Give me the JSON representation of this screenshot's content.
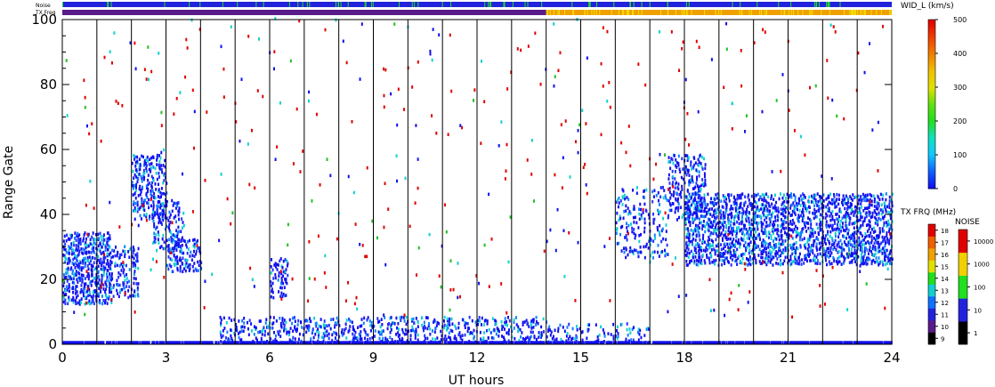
{
  "header": {
    "noise_label": "Noise",
    "txfreq_label": "TX Freq"
  },
  "chart_data": {
    "type": "heatmap",
    "xlabel": "UT hours",
    "ylabel": "Range Gate",
    "xlim": [
      0,
      24
    ],
    "ylim": [
      0,
      100
    ],
    "xticks": [
      "0",
      "3",
      "6",
      "9",
      "12",
      "15",
      "18",
      "21",
      "24"
    ],
    "yticks": [
      "0",
      "20",
      "40",
      "60",
      "80",
      "100"
    ],
    "hour_divider_lines": [
      1,
      2,
      3,
      4,
      5,
      6,
      7,
      8,
      9,
      10,
      11,
      12,
      13,
      14,
      15,
      16,
      17,
      18,
      19,
      20,
      21,
      22,
      23
    ],
    "colorbars": {
      "width": {
        "title": "WID_L (km/s)",
        "ticks": [
          "0",
          "100",
          "200",
          "300",
          "400",
          "500"
        ],
        "range": [
          0,
          500
        ]
      },
      "txfreq": {
        "title": "TX FRQ (MHz)",
        "ticks": [
          "9",
          "10",
          "11",
          "12",
          "13",
          "14",
          "15",
          "16",
          "17",
          "18"
        ],
        "colors": [
          "#000000",
          "#5a1a8a",
          "#2222dd",
          "#1070ff",
          "#10d0d0",
          "#20e020",
          "#e0e000",
          "#f0a000",
          "#f06000",
          "#e00000"
        ]
      },
      "noise": {
        "title": "NOISE",
        "ticks": [
          "1",
          "10",
          "100",
          "1000",
          "10000"
        ],
        "colors": [
          "#000000",
          "#2222dd",
          "#20e020",
          "#f0d000",
          "#e00000"
        ]
      }
    },
    "status_bars": {
      "noise": {
        "main_color": "#2222dd",
        "accent_color": "#20e020"
      },
      "txfreq": {
        "segments": [
          {
            "from": 0,
            "to": 14,
            "color": "#5a1a8a"
          },
          {
            "from": 14,
            "to": 24,
            "color": "#f0a000"
          }
        ]
      }
    },
    "scatter_regions": [
      {
        "t0": 0.0,
        "t1": 1.4,
        "g0": 12,
        "g1": 34,
        "density": 0.8
      },
      {
        "t0": 1.4,
        "t1": 2.2,
        "g0": 14,
        "g1": 30,
        "density": 0.5
      },
      {
        "t0": 2.0,
        "t1": 3.0,
        "g0": 38,
        "g1": 58,
        "density": 0.6
      },
      {
        "t0": 2.6,
        "t1": 3.5,
        "g0": 28,
        "g1": 44,
        "density": 0.45
      },
      {
        "t0": 3.0,
        "t1": 4.0,
        "g0": 22,
        "g1": 32,
        "density": 0.6
      },
      {
        "t0": 6.0,
        "t1": 6.5,
        "g0": 14,
        "g1": 26,
        "density": 0.55
      },
      {
        "t0": 4.5,
        "t1": 14.0,
        "g0": 0,
        "g1": 8,
        "density": 0.45
      },
      {
        "t0": 14.0,
        "t1": 17.0,
        "g0": 0,
        "g1": 6,
        "density": 0.35
      },
      {
        "t0": 16.0,
        "t1": 17.5,
        "g0": 26,
        "g1": 48,
        "density": 0.3
      },
      {
        "t0": 17.5,
        "t1": 18.6,
        "g0": 38,
        "g1": 58,
        "density": 0.45
      },
      {
        "t0": 18.0,
        "t1": 20.5,
        "g0": 24,
        "g1": 46,
        "density": 0.75
      },
      {
        "t0": 20.5,
        "t1": 24.0,
        "g0": 24,
        "g1": 46,
        "density": 0.7
      }
    ]
  }
}
